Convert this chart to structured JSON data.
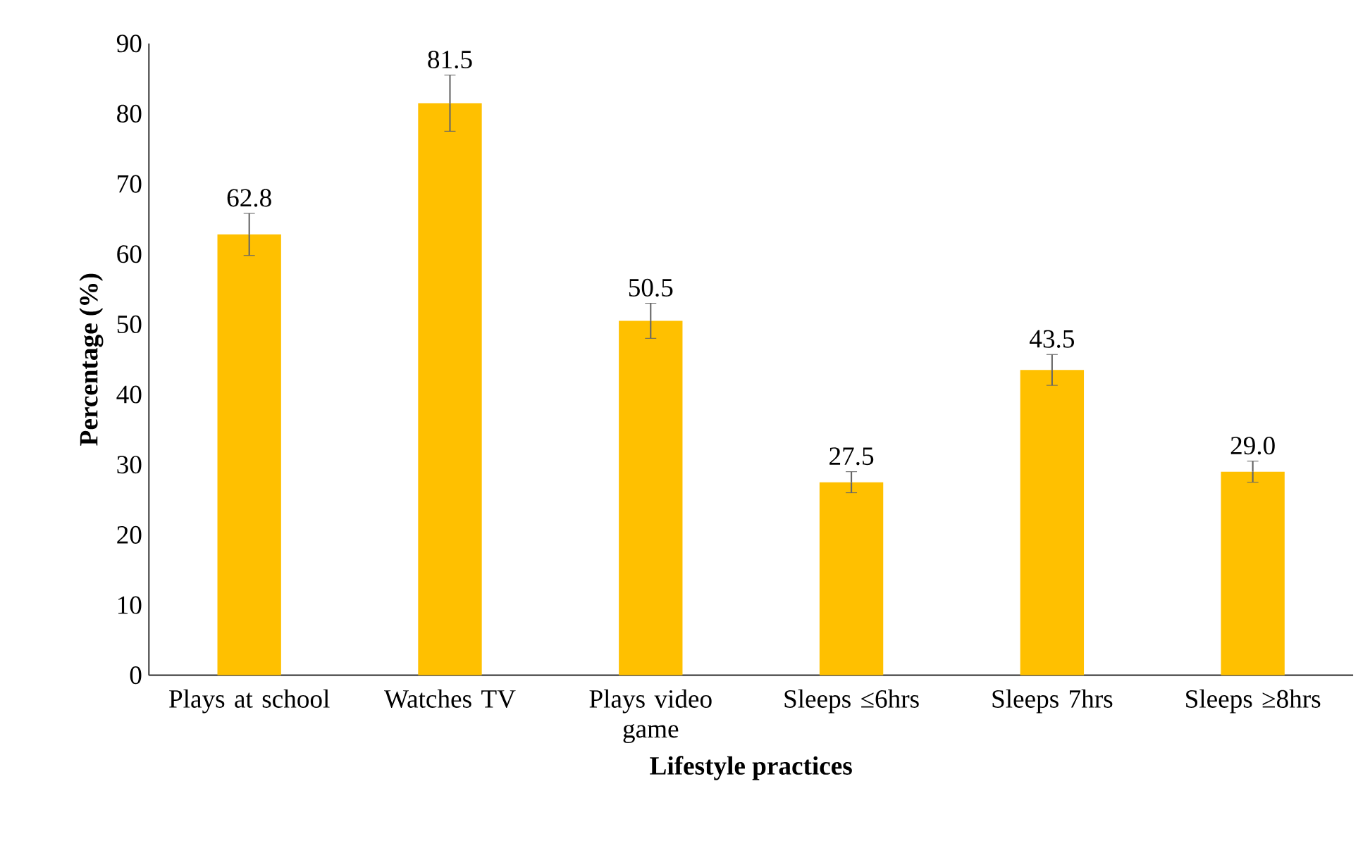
{
  "chart_data": {
    "type": "bar",
    "xlabel": "Lifestyle practices",
    "ylabel": "Percentage (%)",
    "categories": [
      "Plays at school",
      "Watches TV",
      "Plays video game",
      "Sleeps ≤6hrs",
      "Sleeps 7hrs",
      "Sleeps ≥8hrs"
    ],
    "values": [
      62.8,
      81.5,
      50.5,
      27.5,
      43.5,
      29.0
    ],
    "errors": [
      3,
      4,
      2.5,
      1.5,
      2.2,
      1.5
    ],
    "value_labels": [
      "62.8",
      "81.5",
      "50.5",
      "27.5",
      "43.5",
      "29.0"
    ],
    "color": "#ffc000",
    "grid": false,
    "ylim": [
      0,
      90
    ],
    "yticks": [
      0,
      10,
      20,
      30,
      40,
      50,
      60,
      70,
      80,
      90
    ]
  }
}
